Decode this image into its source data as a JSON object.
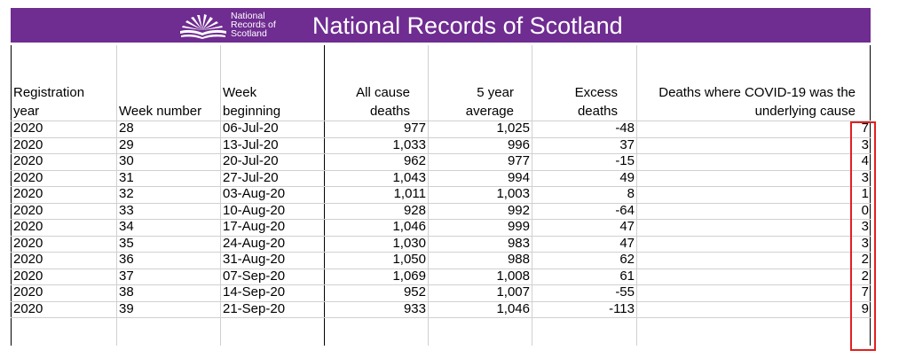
{
  "banner": {
    "logo_lines": [
      "National",
      "Records of",
      "Scotland"
    ],
    "title": "National Records of Scotland",
    "background": "#6f2c91"
  },
  "table": {
    "headers": {
      "registration_year": [
        "Registration",
        "year"
      ],
      "week_number": [
        "Week number"
      ],
      "week_beginning": [
        "Week",
        "beginning"
      ],
      "all_cause_deaths": [
        "All cause",
        "deaths"
      ],
      "five_year_average": [
        "5 year",
        "average"
      ],
      "excess_deaths": [
        "Excess",
        "deaths"
      ],
      "covid_deaths": [
        "Deaths where COVID-19 was the",
        "underlying cause"
      ]
    },
    "rows": [
      {
        "year": "2020",
        "week": "28",
        "beginning": "06-Jul-20",
        "all_cause": "977",
        "avg": "1,025",
        "excess": "-48",
        "covid": "7"
      },
      {
        "year": "2020",
        "week": "29",
        "beginning": "13-Jul-20",
        "all_cause": "1,033",
        "avg": "996",
        "excess": "37",
        "covid": "3"
      },
      {
        "year": "2020",
        "week": "30",
        "beginning": "20-Jul-20",
        "all_cause": "962",
        "avg": "977",
        "excess": "-15",
        "covid": "4"
      },
      {
        "year": "2020",
        "week": "31",
        "beginning": "27-Jul-20",
        "all_cause": "1,043",
        "avg": "994",
        "excess": "49",
        "covid": "3"
      },
      {
        "year": "2020",
        "week": "32",
        "beginning": "03-Aug-20",
        "all_cause": "1,011",
        "avg": "1,003",
        "excess": "8",
        "covid": "1"
      },
      {
        "year": "2020",
        "week": "33",
        "beginning": "10-Aug-20",
        "all_cause": "928",
        "avg": "992",
        "excess": "-64",
        "covid": "0"
      },
      {
        "year": "2020",
        "week": "34",
        "beginning": "17-Aug-20",
        "all_cause": "1,046",
        "avg": "999",
        "excess": "47",
        "covid": "3"
      },
      {
        "year": "2020",
        "week": "35",
        "beginning": "24-Aug-20",
        "all_cause": "1,030",
        "avg": "983",
        "excess": "47",
        "covid": "3"
      },
      {
        "year": "2020",
        "week": "36",
        "beginning": "31-Aug-20",
        "all_cause": "1,050",
        "avg": "988",
        "excess": "62",
        "covid": "2"
      },
      {
        "year": "2020",
        "week": "37",
        "beginning": "07-Sep-20",
        "all_cause": "1,069",
        "avg": "1,008",
        "excess": "61",
        "covid": "2"
      },
      {
        "year": "2020",
        "week": "38",
        "beginning": "14-Sep-20",
        "all_cause": "952",
        "avg": "1,007",
        "excess": "-55",
        "covid": "7"
      },
      {
        "year": "2020",
        "week": "39",
        "beginning": "21-Sep-20",
        "all_cause": "933",
        "avg": "1,046",
        "excess": "-113",
        "covid": "9"
      }
    ]
  },
  "highlight_color": "#e02020"
}
